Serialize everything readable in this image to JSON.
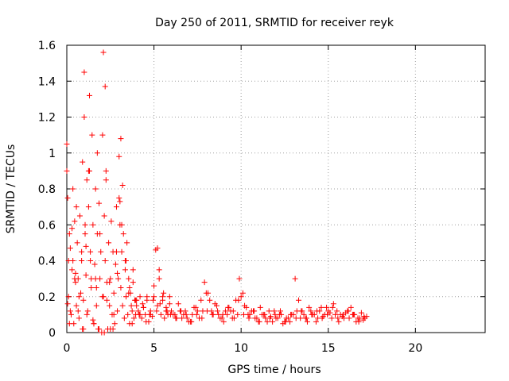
{
  "chart_data": {
    "type": "scatter",
    "title": "Day 250 of 2011, SRMTID for receiver reyk",
    "xlabel": "GPS time / hours",
    "ylabel": "SRMTID / TECUs",
    "xlim": [
      0,
      24
    ],
    "ylim": [
      0,
      1.6
    ],
    "x_ticks": [
      0,
      5,
      10,
      15,
      20
    ],
    "x_tick_labels": [
      "0",
      "5",
      "10",
      "15",
      "20"
    ],
    "y_ticks": [
      0,
      0.2,
      0.4,
      0.6,
      0.8,
      1.0,
      1.2,
      1.4,
      1.6
    ],
    "y_tick_labels": [
      "0",
      "0.2",
      "0.4",
      "0.6",
      "0.8",
      "1",
      "1.2",
      "1.4",
      "1.6"
    ],
    "grid": true,
    "marker": "+",
    "colors": {
      "points": "#ff0000",
      "grid": "#a0a0a0",
      "axes": "#000000"
    },
    "series": [
      {
        "x": [
          0.0,
          0.05,
          0.1,
          0.15,
          0.2,
          0.25,
          0.3,
          0.35,
          0.4,
          0.45,
          0.5,
          0.55,
          0.6,
          0.65,
          0.7,
          0.75,
          0.8,
          0.85,
          0.9,
          0.95,
          1.0,
          1.05,
          1.1,
          1.15,
          1.2,
          1.25,
          1.3,
          1.35,
          1.4,
          1.45,
          1.5,
          1.55,
          1.6,
          1.65,
          1.7,
          1.75,
          1.8,
          1.85,
          1.9,
          1.95,
          2.0,
          2.05,
          2.1,
          2.15,
          2.2,
          2.25,
          2.3,
          2.35,
          2.4,
          2.45,
          2.5,
          2.55,
          2.6,
          2.65,
          2.7,
          2.75,
          2.8,
          2.85,
          2.9,
          2.95,
          3.0,
          3.05,
          3.1,
          3.15,
          3.2,
          3.25,
          3.3,
          3.35,
          3.4,
          3.45,
          3.5,
          3.55,
          3.6,
          3.65,
          3.7,
          3.75,
          3.8,
          3.85,
          3.9,
          3.95,
          4.0,
          4.1,
          4.2,
          4.3,
          4.4,
          4.5,
          4.6,
          4.7,
          4.8,
          4.9,
          5.0,
          5.1,
          5.2,
          5.3,
          5.4,
          5.5,
          5.6,
          5.7,
          5.8,
          5.9,
          6.0,
          6.2,
          6.4,
          6.6,
          6.8,
          7.0,
          7.2,
          7.4,
          7.6,
          7.8,
          8.0,
          8.2,
          8.4,
          8.6,
          8.8,
          9.0,
          9.2,
          9.4,
          9.6,
          9.8,
          10.0,
          10.2,
          10.4,
          10.6,
          10.8,
          11.0,
          11.2,
          11.4,
          11.6,
          11.8,
          12.0,
          12.2,
          12.4,
          12.6,
          12.8,
          13.0,
          13.2,
          13.4,
          13.6,
          13.8,
          14.0,
          14.2,
          14.4,
          14.6,
          14.8,
          15.0,
          15.2,
          15.4,
          15.6,
          15.8,
          16.0,
          16.2,
          16.4,
          16.6,
          16.8,
          17.0,
          17.2,
          0.0,
          0.1,
          0.2,
          0.3,
          0.5,
          0.7,
          0.9,
          1.0,
          1.1,
          1.3,
          1.4,
          1.5,
          1.7,
          1.9,
          2.1,
          2.2,
          2.3,
          2.5,
          2.7,
          2.9,
          3.0,
          3.1,
          3.2,
          3.4,
          3.6,
          3.8,
          4.0,
          4.2,
          4.4,
          4.6,
          4.8,
          5.0,
          5.2,
          5.3,
          5.5,
          5.7,
          5.9,
          6.1,
          6.3,
          6.5,
          6.7,
          6.9,
          7.1,
          7.3,
          7.5,
          7.7,
          7.9,
          8.1,
          8.3,
          8.5,
          8.7,
          8.9,
          9.1,
          9.3,
          9.5,
          9.7,
          9.9,
          10.1,
          10.3,
          10.5,
          10.7,
          10.9,
          11.1,
          11.3,
          11.5,
          11.7,
          11.9,
          12.1,
          12.3,
          12.5,
          12.7,
          12.9,
          13.1,
          13.3,
          13.5,
          13.7,
          13.9,
          14.1,
          14.3,
          14.5,
          14.7,
          14.9,
          15.1,
          15.3,
          15.5,
          15.7,
          15.9,
          16.1,
          16.3,
          16.5,
          16.7,
          16.9,
          17.1,
          0.05,
          0.15,
          0.35,
          0.45,
          0.55,
          0.65,
          0.85,
          0.95,
          1.05,
          1.15,
          1.25,
          1.35,
          1.55,
          1.65,
          1.75,
          1.85,
          2.05,
          2.15,
          2.25,
          2.45,
          2.65,
          2.85,
          3.05,
          3.15,
          3.35,
          3.55,
          3.75,
          3.95,
          4.15,
          4.35,
          4.55,
          4.75,
          4.95,
          5.15,
          5.35,
          5.55,
          5.75,
          5.95,
          6.25,
          6.55,
          6.85,
          7.15,
          7.45,
          7.75,
          8.05,
          8.35,
          8.65,
          8.95,
          9.25,
          9.55,
          9.85,
          10.15,
          10.45,
          10.75,
          11.05,
          11.35,
          11.65,
          11.95,
          12.25,
          12.55,
          12.85,
          13.15,
          13.45,
          13.75,
          14.05,
          14.35,
          14.65,
          14.95,
          15.25,
          15.55,
          15.85,
          16.15,
          16.45,
          16.75,
          17.05
        ],
        "y": [
          1.05,
          0.75,
          0.2,
          0.55,
          0.47,
          0.1,
          0.35,
          0.4,
          0.05,
          0.62,
          0.28,
          0.15,
          0.5,
          0.3,
          0.08,
          0.65,
          0.22,
          0.4,
          0.95,
          0.18,
          1.2,
          0.55,
          0.32,
          0.85,
          0.12,
          0.7,
          1.32,
          0.45,
          0.25,
          1.1,
          0.6,
          0.05,
          0.38,
          0.8,
          0.15,
          0.55,
          0.02,
          0.72,
          0.3,
          0.45,
          0.0,
          1.1,
          0.2,
          0.65,
          0.4,
          0.85,
          0.28,
          0.02,
          0.5,
          0.15,
          0.3,
          0.62,
          0.1,
          0.45,
          0.22,
          0.05,
          0.38,
          0.7,
          0.12,
          0.3,
          0.98,
          0.6,
          0.25,
          0.45,
          0.15,
          0.55,
          0.08,
          0.35,
          0.2,
          0.5,
          0.1,
          0.3,
          0.05,
          0.22,
          0.15,
          0.12,
          0.28,
          0.08,
          0.18,
          0.1,
          0.15,
          0.12,
          0.2,
          0.08,
          0.14,
          0.1,
          0.18,
          0.06,
          0.12,
          0.09,
          0.2,
          0.46,
          0.15,
          0.3,
          0.1,
          0.18,
          0.08,
          0.14,
          0.1,
          0.2,
          0.12,
          0.1,
          0.16,
          0.08,
          0.12,
          0.06,
          0.1,
          0.14,
          0.08,
          0.12,
          0.22,
          0.18,
          0.1,
          0.15,
          0.08,
          0.06,
          0.1,
          0.12,
          0.08,
          0.1,
          0.2,
          0.15,
          0.1,
          0.12,
          0.08,
          0.06,
          0.1,
          0.08,
          0.12,
          0.06,
          0.08,
          0.1,
          0.05,
          0.08,
          0.06,
          0.1,
          0.12,
          0.08,
          0.1,
          0.06,
          0.12,
          0.1,
          0.08,
          0.14,
          0.1,
          0.12,
          0.08,
          0.1,
          0.06,
          0.09,
          0.11,
          0.08,
          0.1,
          0.06,
          0.08,
          0.07,
          0.09,
          0.9,
          0.4,
          0.12,
          0.58,
          0.33,
          0.2,
          0.02,
          1.45,
          0.48,
          0.9,
          0.3,
          0.07,
          0.25,
          0.55,
          1.56,
          1.37,
          0.18,
          0.02,
          0.1,
          0.33,
          0.75,
          1.08,
          0.82,
          0.4,
          0.25,
          0.35,
          0.18,
          0.1,
          0.14,
          0.2,
          0.1,
          0.26,
          0.47,
          0.35,
          0.2,
          0.12,
          0.16,
          0.1,
          0.08,
          0.12,
          0.1,
          0.08,
          0.06,
          0.14,
          0.12,
          0.18,
          0.28,
          0.22,
          0.12,
          0.16,
          0.1,
          0.08,
          0.12,
          0.14,
          0.08,
          0.18,
          0.3,
          0.22,
          0.14,
          0.1,
          0.12,
          0.08,
          0.14,
          0.1,
          0.06,
          0.09,
          0.12,
          0.08,
          0.1,
          0.06,
          0.08,
          0.1,
          0.3,
          0.18,
          0.12,
          0.08,
          0.14,
          0.1,
          0.06,
          0.12,
          0.09,
          0.14,
          0.11,
          0.16,
          0.12,
          0.1,
          0.08,
          0.12,
          0.14,
          0.1,
          0.08,
          0.11,
          0.08,
          0.16,
          0.05,
          0.8,
          0.3,
          0.7,
          0.12,
          0.45,
          0.02,
          0.6,
          0.1,
          0.9,
          0.4,
          0.05,
          0.3,
          1.0,
          0.02,
          0.2,
          0.0,
          0.9,
          0.28,
          0.02,
          0.45,
          0.73,
          0.6,
          0.4,
          0.22,
          0.05,
          0.18,
          0.1,
          0.16,
          0.06,
          0.1,
          0.18,
          0.12,
          0.16,
          0.22,
          0.12,
          0.1,
          0.08,
          0.12,
          0.1,
          0.06,
          0.1,
          0.08,
          0.12,
          0.1,
          0.12,
          0.1,
          0.14,
          0.12,
          0.18,
          0.1,
          0.08,
          0.12,
          0.06,
          0.1,
          0.08,
          0.1,
          0.12,
          0.06,
          0.1,
          0.08,
          0.12,
          0.08,
          0.1,
          0.12,
          0.08,
          0.1,
          0.14,
          0.08,
          0.1,
          0.12,
          0.1,
          0.06,
          0.09
        ]
      }
    ]
  }
}
